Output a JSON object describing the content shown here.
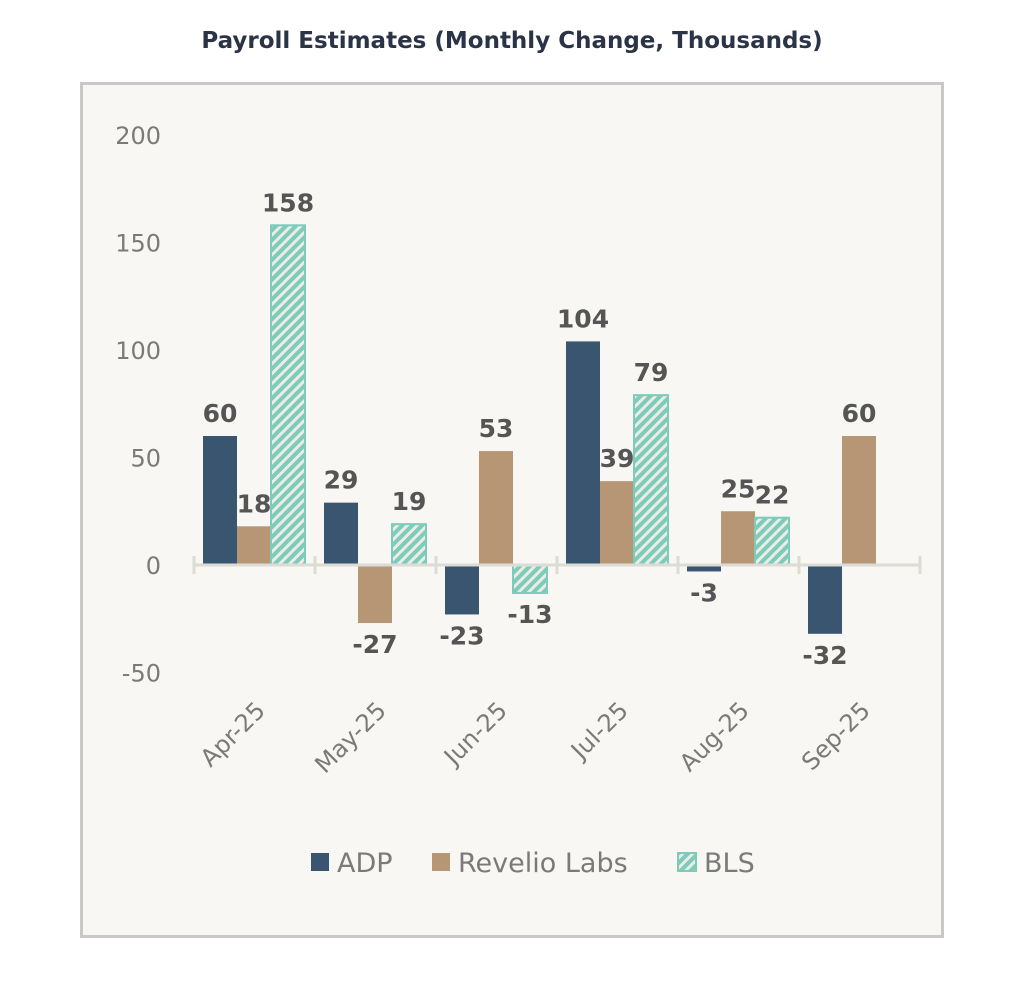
{
  "chart_data": {
    "type": "bar",
    "title": "Payroll Estimates (Monthly Change, Thousands)",
    "xlabel": "",
    "ylabel": "",
    "categories": [
      "Apr-25",
      "May-25",
      "Jun-25",
      "Jul-25",
      "Aug-25",
      "Sep-25"
    ],
    "series": [
      {
        "name": "ADP",
        "color": "#3a5570",
        "pattern": "solid",
        "values": [
          60,
          29,
          -23,
          104,
          -3,
          -32
        ]
      },
      {
        "name": "Revelio Labs",
        "color": "#b69674",
        "pattern": "solid",
        "values": [
          18,
          -27,
          53,
          39,
          25,
          60
        ]
      },
      {
        "name": "BLS",
        "color": "#7ccbbb",
        "pattern": "hatched",
        "values": [
          158,
          19,
          -13,
          79,
          22,
          null
        ]
      }
    ],
    "y_ticks": [
      "200",
      "150",
      "100",
      "50",
      "0",
      "-50"
    ],
    "y_tick_values": [
      200,
      150,
      100,
      50,
      0,
      -50
    ],
    "ylim": [
      -50,
      200
    ],
    "grid": false,
    "legend": "bottom",
    "data_labels": [
      [
        "60",
        "29",
        "-23",
        "104",
        "-3",
        "-32"
      ],
      [
        "18",
        "-27",
        "53",
        "39",
        "25",
        "60"
      ],
      [
        "158",
        "19",
        "-13",
        "79",
        "22",
        ""
      ]
    ]
  }
}
